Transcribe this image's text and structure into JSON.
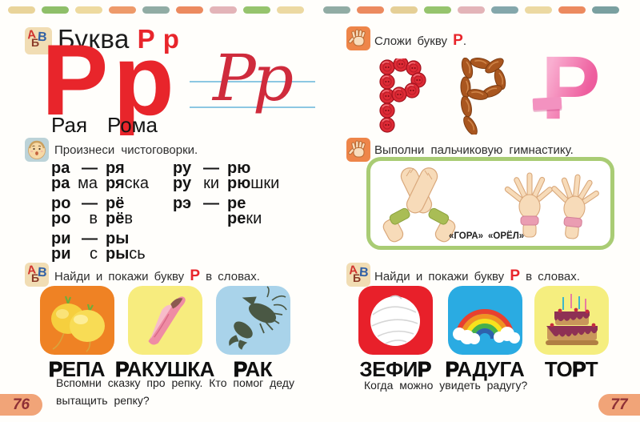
{
  "top_dashes": [
    "#e9d49a",
    "#8fbf69",
    "#eeda9f",
    "#ee9a6a",
    "#91aca4",
    "#ec8a5f",
    "#e3b4b8",
    "#96c46d",
    "#ecd9a2",
    "#91aca4",
    "#ec8a5f",
    "#e5cf96",
    "#96c46d",
    "#e3b4b8",
    "#84a7ab",
    "#ecd9a2",
    "#ec8a5f",
    "#7aa0a0"
  ],
  "abc_letters": [
    "А",
    "Б",
    "В"
  ],
  "page_left": {
    "page_number": "76",
    "title_seg": [
      [
        "Буква ",
        0
      ],
      [
        "Р р",
        1
      ]
    ],
    "big_letters": "Рр",
    "cursive": "Рр",
    "names": [
      "Рая",
      "Рома"
    ],
    "say_header": "Произнеси чистоговорки.",
    "syllable_groups": [
      {
        "rows": [
          {
            "type": "pair",
            "a": "ра",
            "b": "ря"
          },
          {
            "type": "words",
            "a": [
              [
                "ра",
                1
              ],
              [
                "ма",
                0
              ]
            ],
            "b": [
              [
                "ря",
                1
              ],
              [
                "ска",
                0
              ]
            ]
          },
          {
            "type": "pair",
            "a": "ро",
            "b": "рё"
          },
          {
            "type": "words",
            "a": [
              [
                "ро",
                1
              ],
              [
                "в",
                0
              ]
            ],
            "b": [
              [
                "рё",
                1
              ],
              [
                "в",
                0
              ]
            ]
          },
          {
            "type": "pair",
            "a": "ри",
            "b": "ры"
          },
          {
            "type": "words",
            "a": [
              [
                "ри",
                1
              ],
              [
                "с",
                0
              ]
            ],
            "b": [
              [
                "ры",
                1
              ],
              [
                "сь",
                0
              ]
            ]
          }
        ]
      },
      {
        "rows": [
          {
            "type": "pair",
            "a": "ру",
            "b": "рю"
          },
          {
            "type": "words",
            "a": [
              [
                "ру",
                1
              ],
              [
                "ки",
                0
              ]
            ],
            "b": [
              [
                "рю",
                1
              ],
              [
                "шки",
                0
              ]
            ]
          },
          {
            "type": "pair",
            "a": "рэ",
            "b": "ре"
          },
          {
            "type": "words",
            "a": null,
            "b": [
              [
                "ре",
                1
              ],
              [
                "ки",
                0
              ]
            ]
          }
        ]
      }
    ],
    "find_prompt": [
      [
        "Найди и покажи букву ",
        0
      ],
      [
        "Р",
        1
      ],
      [
        " в словах.",
        0
      ]
    ],
    "cards": [
      {
        "label": [
          [
            "Р",
            1
          ],
          [
            "ЕПА",
            0
          ]
        ],
        "bg": "#ef8224",
        "image": "turnips"
      },
      {
        "label": [
          [
            "Р",
            1
          ],
          [
            "АКУШКА",
            0
          ]
        ],
        "bg": "#f7ec7e",
        "image": "seashell"
      },
      {
        "label": [
          [
            "Р",
            1
          ],
          [
            "АК",
            0
          ]
        ],
        "bg": "#a9d3ea",
        "image": "crayfish"
      }
    ],
    "question": "Вспомни сказку про репку. Кто помог деду вытащить репку?"
  },
  "page_right": {
    "page_number": "77",
    "fold_prompt": [
      [
        "Сложи букву ",
        0
      ],
      [
        "Р",
        1
      ],
      [
        ".",
        0
      ]
    ],
    "ribbon_letter": "Р",
    "gym_header": "Выполни пальчиковую гимнастику.",
    "gym_labels": [
      "«ГОРА»",
      "«ОРЁЛ»"
    ],
    "find_prompt": [
      [
        "Найди и покажи букву ",
        0
      ],
      [
        "Р",
        1
      ],
      [
        " в словах.",
        0
      ]
    ],
    "cards": [
      {
        "label": [
          [
            "ЗЕФИ",
            0
          ],
          [
            "Р",
            1
          ]
        ],
        "bg": "#e8202a",
        "image": "zephyr"
      },
      {
        "label": [
          [
            "Р",
            1
          ],
          [
            "АДУГА",
            0
          ]
        ],
        "bg": "#2aabe2",
        "image": "rainbow"
      },
      {
        "label": [
          [
            "ТО",
            0
          ],
          [
            "Р",
            1
          ],
          [
            "Т",
            0
          ]
        ],
        "bg": "#f5ee7f",
        "image": "cake"
      }
    ],
    "question": "Когда можно увидеть радугу?"
  }
}
